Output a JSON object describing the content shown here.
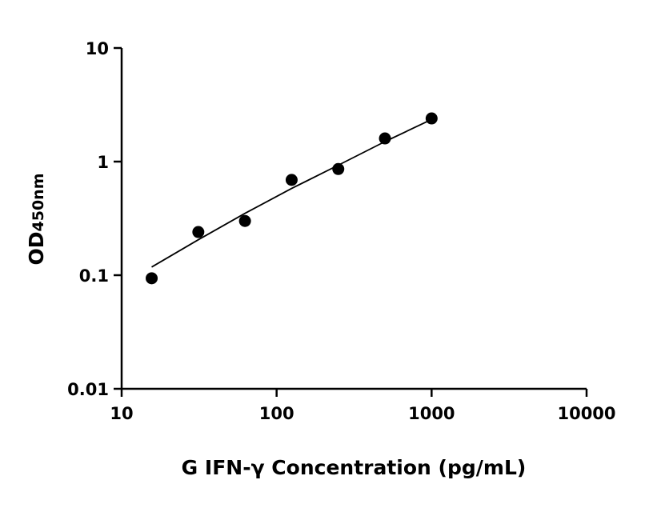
{
  "chart_data": {
    "type": "scatter",
    "title": "",
    "xlabel": "G IFN-γ Concentration (pg/mL)",
    "ylabel_main": "OD",
    "ylabel_sub": "450nm",
    "x_scale": "log",
    "y_scale": "log",
    "xlim": [
      10,
      10000
    ],
    "ylim": [
      0.01,
      10
    ],
    "x_ticks": [
      10,
      100,
      1000,
      10000
    ],
    "x_tick_labels": [
      "10",
      "100",
      "1000",
      "10000"
    ],
    "y_ticks": [
      0.01,
      0.1,
      1,
      10
    ],
    "y_tick_labels": [
      "0.01",
      "0.1",
      "1",
      "10"
    ],
    "grid": false,
    "legend": "none",
    "points": {
      "x": [
        15.625,
        31.25,
        62.5,
        125,
        250,
        500,
        1000
      ],
      "y": [
        0.094,
        0.24,
        0.3,
        0.69,
        0.86,
        1.6,
        2.4
      ]
    },
    "fit_curve": {
      "x": [
        15.625,
        31.25,
        62.5,
        125,
        250,
        500,
        1000
      ],
      "y": [
        0.118,
        0.205,
        0.35,
        0.58,
        0.93,
        1.5,
        2.35
      ]
    },
    "colors": {
      "points": "#000000",
      "line": "#000000"
    }
  }
}
